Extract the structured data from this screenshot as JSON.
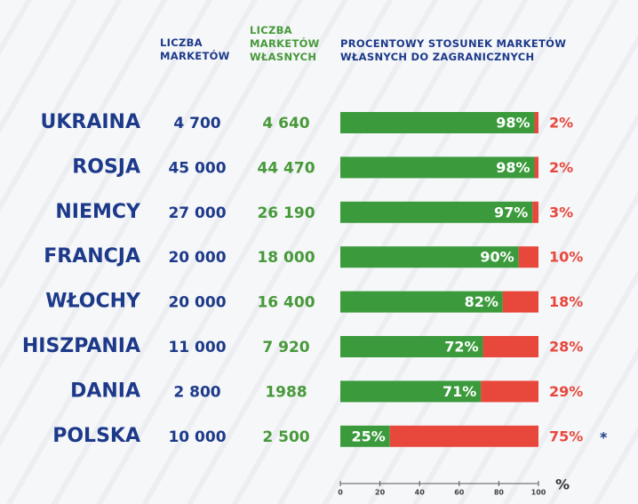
{
  "chart_data": {
    "type": "bar",
    "stacked": true,
    "orientation": "horizontal",
    "categories": [
      "UKRAINA",
      "ROSJA",
      "NIEMCY",
      "FRANCJA",
      "WŁOCHY",
      "HISZPANIA",
      "DANIA",
      "POLSKA"
    ],
    "columns": [
      {
        "name": "LICZBA MARKETÓW",
        "color": "#1d3a8a",
        "values": [
          4700,
          45000,
          27000,
          20000,
          20000,
          11000,
          2800,
          10000
        ],
        "value_labels": [
          "4 700",
          "45 000",
          "27 000",
          "20 000",
          "20 000",
          "11 000",
          "2 800",
          "10 000"
        ]
      },
      {
        "name": "LICZBA MARKETÓW WŁASNYCH",
        "color": "#47993a",
        "values": [
          4640,
          44470,
          26190,
          18000,
          16400,
          7920,
          1988,
          2500
        ],
        "value_labels": [
          "4 640",
          "44 470",
          "26 190",
          "18 000",
          "16 400",
          "7 920",
          "1988",
          "2 500"
        ]
      }
    ],
    "bar_title": "PROCENTOWY STOSUNEK MARKETÓW WŁASNYCH DO ZAGRANICZNYCH",
    "series": [
      {
        "color": "#3b9b3c",
        "values": [
          98,
          98,
          97,
          90,
          82,
          72,
          71,
          25
        ],
        "value_labels": [
          "98%",
          "98%",
          "97%",
          "90%",
          "82%",
          "72%",
          "71%",
          "25%"
        ]
      },
      {
        "color": "#e8473c",
        "values": [
          2,
          2,
          3,
          10,
          18,
          28,
          29,
          75
        ],
        "value_labels": [
          "2%",
          "2%",
          "3%",
          "10%",
          "18%",
          "28%",
          "29%",
          "75%"
        ]
      }
    ],
    "xlim": [
      0,
      100
    ],
    "xticks": [
      0,
      20,
      40,
      60,
      80,
      100
    ],
    "xlabel": "%",
    "note_mark": "*"
  }
}
